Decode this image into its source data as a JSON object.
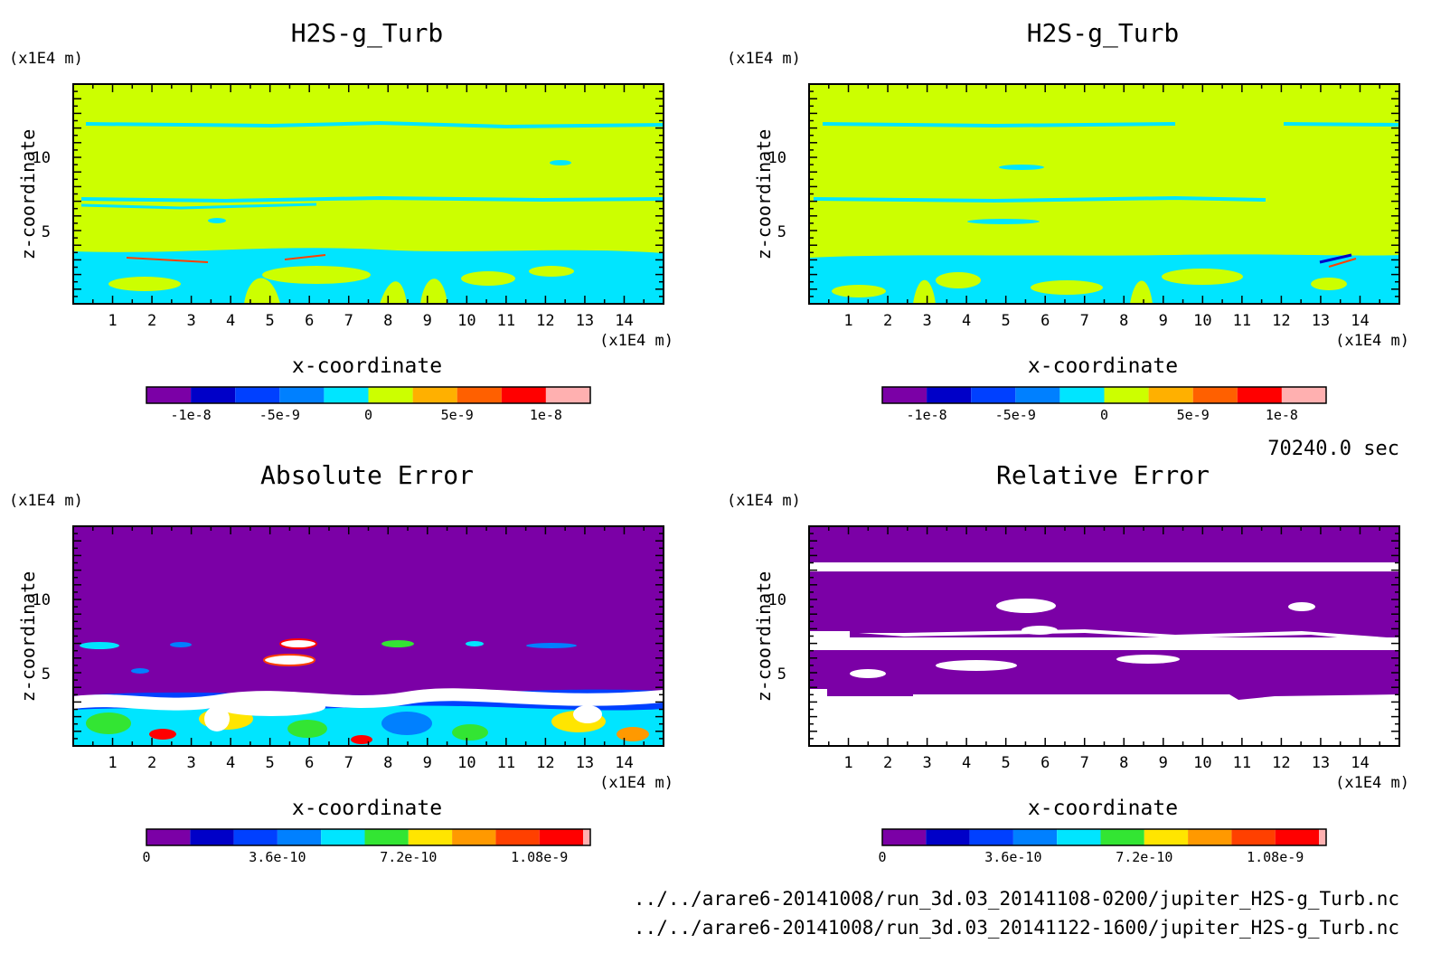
{
  "figure": {
    "time_label": "70240.0 sec",
    "files": [
      "../../arare6-20141008/run_3d.03_20141108-0200/jupiter_H2S-g_Turb.nc",
      "../../arare6-20141008/run_3d.03_20141122-1600/jupiter_H2S-g_Turb.nc"
    ]
  },
  "chart_data": [
    {
      "type": "heatmap",
      "title": "H2S-g_Turb",
      "xlabel": "x-coordinate",
      "ylabel": "z-coordinate",
      "x_unit": "(x1E4 m)",
      "y_unit": "(x1E4 m)",
      "xlim": [
        0,
        15
      ],
      "ylim": [
        0,
        15
      ],
      "x_ticks": [
        "1",
        "2",
        "3",
        "4",
        "5",
        "6",
        "7",
        "8",
        "9",
        "10",
        "11",
        "12",
        "13",
        "14"
      ],
      "y_ticks": [
        "5",
        "10"
      ],
      "colorbar": {
        "colors": [
          "#7b00a6",
          "#0000c8",
          "#0040ff",
          "#0080ff",
          "#00e5ff",
          "#ccff00",
          "#ffb000",
          "#ff6000",
          "#ff0000",
          "#ffb0b0"
        ],
        "labels": [
          "-1e-8",
          "-5e-9",
          "0",
          "5e-9",
          "1e-8"
        ]
      },
      "background_color": "#ccff00",
      "lower_layer_color": "#00e5ff",
      "description_values": {
        "dominant_value": "0 to 2.5e-9",
        "lower_layer_value": "-2.5e-9 to 0"
      }
    },
    {
      "type": "heatmap",
      "title": "H2S-g_Turb",
      "xlabel": "x-coordinate",
      "ylabel": "z-coordinate",
      "x_unit": "(x1E4 m)",
      "y_unit": "(x1E4 m)",
      "xlim": [
        0,
        15
      ],
      "ylim": [
        0,
        15
      ],
      "x_ticks": [
        "1",
        "2",
        "3",
        "4",
        "5",
        "6",
        "7",
        "8",
        "9",
        "10",
        "11",
        "12",
        "13",
        "14"
      ],
      "y_ticks": [
        "5",
        "10"
      ],
      "colorbar": {
        "colors": [
          "#7b00a6",
          "#0000c8",
          "#0040ff",
          "#0080ff",
          "#00e5ff",
          "#ccff00",
          "#ffb000",
          "#ff6000",
          "#ff0000",
          "#ffb0b0"
        ],
        "labels": [
          "-1e-8",
          "-5e-9",
          "0",
          "5e-9",
          "1e-8"
        ]
      },
      "background_color": "#ccff00",
      "lower_layer_color": "#00e5ff"
    },
    {
      "type": "heatmap",
      "title": "Absolute Error",
      "xlabel": "x-coordinate",
      "ylabel": "z-coordinate",
      "x_unit": "(x1E4 m)",
      "y_unit": "(x1E4 m)",
      "xlim": [
        0,
        15
      ],
      "ylim": [
        0,
        15
      ],
      "x_ticks": [
        "1",
        "2",
        "3",
        "4",
        "5",
        "6",
        "7",
        "8",
        "9",
        "10",
        "11",
        "12",
        "13",
        "14"
      ],
      "y_ticks": [
        "5",
        "10"
      ],
      "colorbar": {
        "colors": [
          "#7b00a6",
          "#0000c8",
          "#0040ff",
          "#0080ff",
          "#00e5ff",
          "#33e533",
          "#ffe500",
          "#ff9900",
          "#ff4000",
          "#ff0000",
          "#ffb0b0"
        ],
        "labels": [
          "0",
          "3.6e-10",
          "7.2e-10",
          "1.08e-9"
        ]
      },
      "background_color": "#7b00a6"
    },
    {
      "type": "heatmap",
      "title": "Relative Error",
      "xlabel": "x-coordinate",
      "ylabel": "z-coordinate",
      "x_unit": "(x1E4 m)",
      "y_unit": "(x1E4 m)",
      "xlim": [
        0,
        15
      ],
      "ylim": [
        0,
        15
      ],
      "x_ticks": [
        "1",
        "2",
        "3",
        "4",
        "5",
        "6",
        "7",
        "8",
        "9",
        "10",
        "11",
        "12",
        "13",
        "14"
      ],
      "y_ticks": [
        "5",
        "10"
      ],
      "colorbar": {
        "colors": [
          "#7b00a6",
          "#0000c8",
          "#0040ff",
          "#0080ff",
          "#00e5ff",
          "#33e533",
          "#ffe500",
          "#ff9900",
          "#ff4000",
          "#ff0000",
          "#ffb0b0"
        ],
        "labels": [
          "0",
          "3.6e-10",
          "7.2e-10",
          "1.08e-9"
        ]
      },
      "background_color": "#7b00a6"
    }
  ]
}
